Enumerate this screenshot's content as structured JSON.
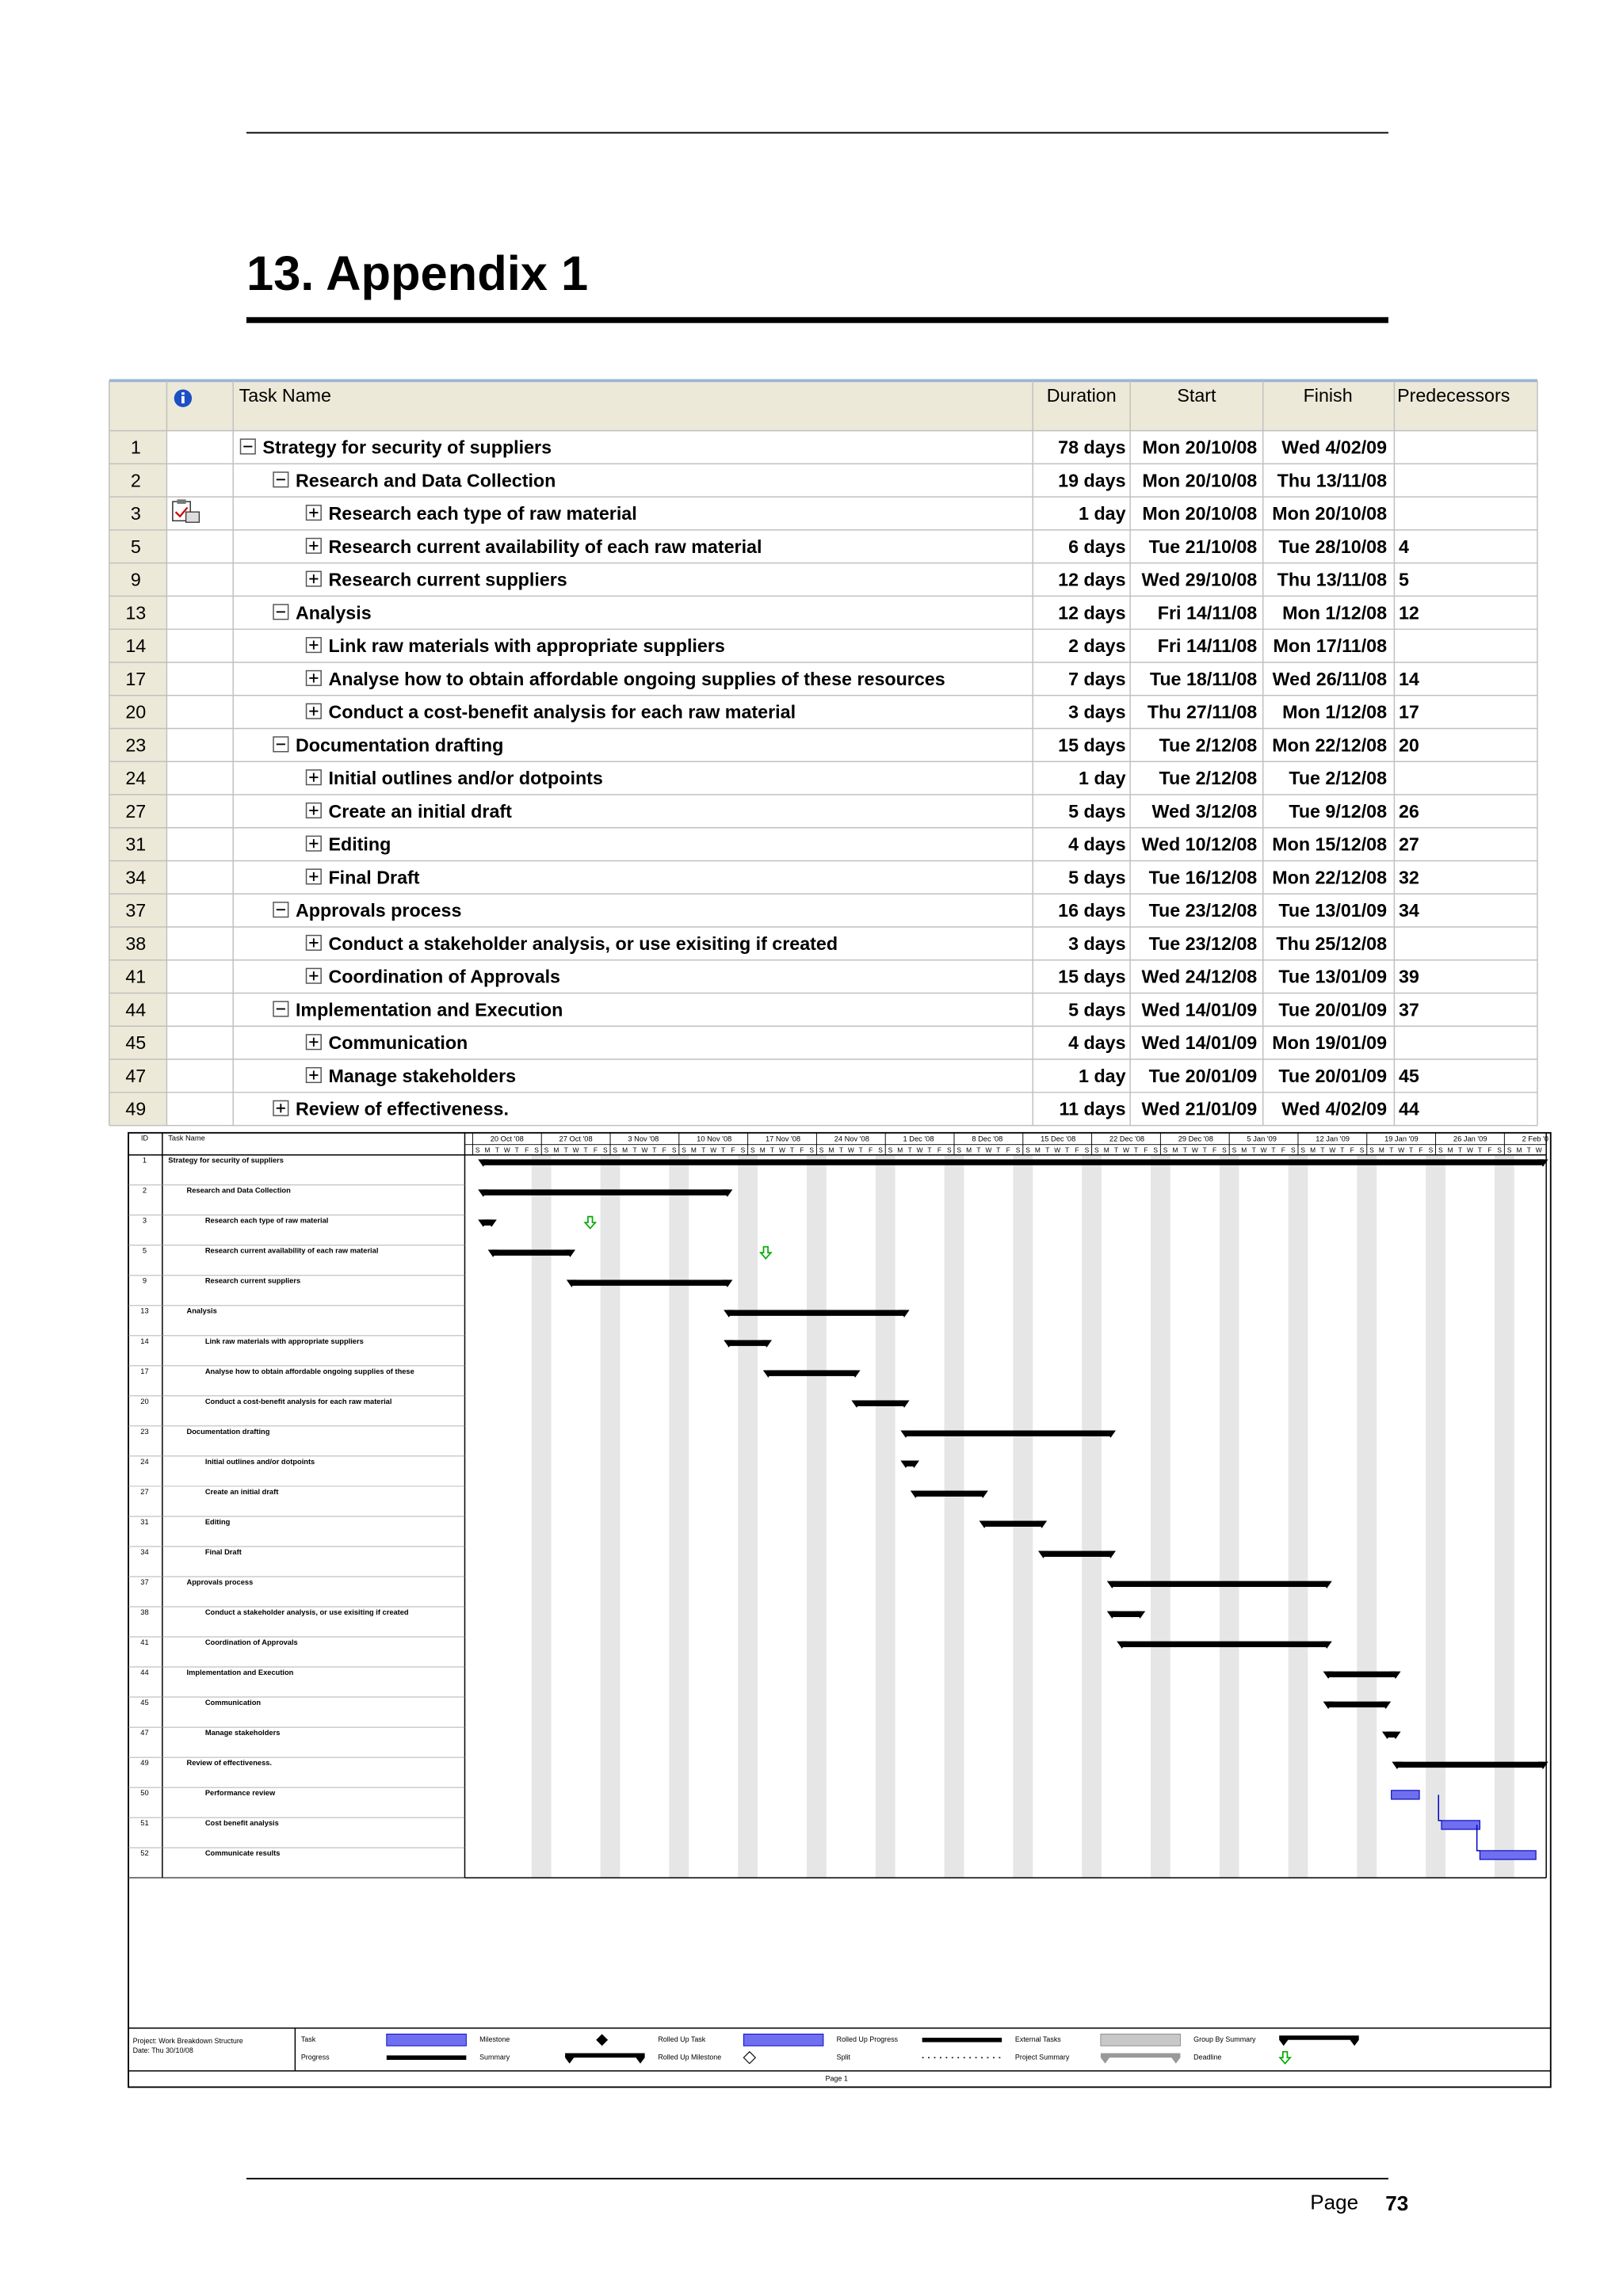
{
  "header": {
    "title": "13.  Appendix 1"
  },
  "table": {
    "columns": [
      "Task Name",
      "Duration",
      "Start",
      "Finish",
      "Predecessors"
    ],
    "rows": [
      {
        "id": 1,
        "name": "Strategy for security of suppliers",
        "duration": "78 days",
        "start": "Mon 20/10/08",
        "finish": "Wed 4/02/09"
      },
      {
        "id": 2,
        "name": "Research and Data Collection",
        "duration": "19 days",
        "start": "Mon 20/10/08",
        "finish": "Thu 13/11/08"
      },
      {
        "id": 3,
        "name": "Research each type of raw material",
        "duration": "1 day",
        "start": "Mon 20/10/08",
        "finish": "Mon 20/10/08"
      },
      {
        "id": 5,
        "name": "Research current availability of each raw material",
        "duration": "6 days",
        "start": "Tue 21/10/08",
        "finish": "Tue 28/10/08",
        "predecessors": 4
      },
      {
        "id": 9,
        "name": "Research current suppliers",
        "duration": "12 days",
        "start": "Wed 29/10/08",
        "finish": "Thu 13/11/08",
        "predecessors": 5
      },
      {
        "id": 13,
        "name": "Analysis",
        "duration": "12 days",
        "start": "Fri 14/11/08",
        "finish": "Mon 1/12/08",
        "predecessors": 12
      },
      {
        "id": 14,
        "name": "Link raw materials with appropriate suppliers",
        "duration": "2 days",
        "start": "Fri 14/11/08",
        "finish": "Mon 17/11/08"
      },
      {
        "id": 17,
        "name": "Analyse how to obtain affordable ongoing supplies of these resources",
        "duration": "7 days",
        "start": "Tue 18/11/08",
        "finish": "Wed 26/11/08",
        "predecessors": 14
      },
      {
        "id": 20,
        "name": "Conduct a cost-benefit analysis for each raw material",
        "duration": "3 days",
        "start": "Thu 27/11/08",
        "finish": "Mon 1/12/08",
        "predecessors": 17
      },
      {
        "id": 23,
        "name": "Documentation drafting",
        "duration": "15 days",
        "start": "Tue 2/12/08",
        "finish": "Mon 22/12/08",
        "predecessors": 20
      },
      {
        "id": 24,
        "name": "Initial outlines and/or dotpoints",
        "duration": "1 day",
        "start": "Tue 2/12/08",
        "finish": "Tue 2/12/08"
      },
      {
        "id": 27,
        "name": "Create an initial draft",
        "duration": "5 days",
        "start": "Wed 3/12/08",
        "finish": "Tue 9/12/08",
        "predecessors": 26
      },
      {
        "id": 31,
        "name": "Editing",
        "duration": "4 days",
        "start": "Wed 10/12/08",
        "finish": "Mon 15/12/08",
        "predecessors": 27
      },
      {
        "id": 34,
        "name": "Final Draft",
        "duration": "5 days",
        "start": "Tue 16/12/08",
        "finish": "Mon 22/12/08",
        "predecessors": 32
      },
      {
        "id": 37,
        "name": "Approvals process",
        "duration": "16 days",
        "start": "Tue 23/12/08",
        "finish": "Tue 13/01/09",
        "predecessors": 34
      },
      {
        "id": 38,
        "name": "Conduct a stakeholder analysis, or use exisiting if created",
        "duration": "3 days",
        "start": "Tue 23/12/08",
        "finish": "Thu 25/12/08"
      },
      {
        "id": 41,
        "name": "Coordination of Approvals",
        "duration": "15 days",
        "start": "Wed 24/12/08",
        "finish": "Tue 13/01/09",
        "predecessors": 39
      },
      {
        "id": 44,
        "name": "Implementation and Execution",
        "duration": "5 days",
        "start": "Wed 14/01/09",
        "finish": "Tue 20/01/09",
        "predecessors": 37
      },
      {
        "id": 45,
        "name": "Communication",
        "duration": "4 days",
        "start": "Wed 14/01/09",
        "finish": "Mon 19/01/09"
      },
      {
        "id": 47,
        "name": "Manage stakeholders",
        "duration": "1 day",
        "start": "Tue 20/01/09",
        "finish": "Tue 20/01/09",
        "predecessors": 45
      },
      {
        "id": 49,
        "name": "Review of effectiveness.",
        "duration": "11 days",
        "start": "Wed 21/01/09",
        "finish": "Wed 4/02/09",
        "predecessors": 44
      }
    ]
  },
  "gantt": {
    "columns": [
      "ID",
      "Task Name"
    ],
    "weeks": [
      "20 Oct '08",
      "27 Oct '08",
      "3 Nov '08",
      "10 Nov '08",
      "17 Nov '08",
      "24 Nov '08",
      "1 Dec '08",
      "8 Dec '08",
      "15 Dec '08",
      "22 Dec '08",
      "29 Dec '08",
      "5 Jan '09",
      "12 Jan '09",
      "19 Jan '09",
      "26 Jan '09",
      "2 Feb '0"
    ],
    "day_letters": [
      "S",
      "M",
      "T",
      "W",
      "T",
      "F",
      "S"
    ],
    "rows": [
      {
        "id": 1,
        "name": "Strategy for security of suppliers"
      },
      {
        "id": 2,
        "name": "Research and Data Collection"
      },
      {
        "id": 3,
        "name": "Research each type of raw material"
      },
      {
        "id": 5,
        "name": "Research current availability of each raw material"
      },
      {
        "id": 9,
        "name": "Research current suppliers"
      },
      {
        "id": 13,
        "name": "Analysis"
      },
      {
        "id": 14,
        "name": "Link raw materials with appropriate suppliers"
      },
      {
        "id": 17,
        "name": "Analyse how to obtain affordable ongoing supplies of these"
      },
      {
        "id": 20,
        "name": "Conduct a cost-benefit analysis for each raw material"
      },
      {
        "id": 23,
        "name": "Documentation drafting"
      },
      {
        "id": 24,
        "name": "Initial outlines and/or dotpoints"
      },
      {
        "id": 27,
        "name": "Create an initial draft"
      },
      {
        "id": 31,
        "name": "Editing"
      },
      {
        "id": 34,
        "name": "Final Draft"
      },
      {
        "id": 37,
        "name": "Approvals process"
      },
      {
        "id": 38,
        "name": "Conduct a stakeholder analysis, or use exisiting if created"
      },
      {
        "id": 41,
        "name": "Coordination of Approvals"
      },
      {
        "id": 44,
        "name": "Implementation and Execution"
      },
      {
        "id": 45,
        "name": "Communication"
      },
      {
        "id": 47,
        "name": "Manage stakeholders"
      },
      {
        "id": 49,
        "name": "Review of effectiveness."
      },
      {
        "id": 50,
        "name": "Performance review"
      },
      {
        "id": 51,
        "name": "Cost benefit analysis"
      },
      {
        "id": 52,
        "name": "Communicate results"
      }
    ],
    "project": [
      "Project: Work Breakdown Structure",
      "Date: Thu 30/10/08"
    ],
    "legend": [
      "Task",
      "Progress",
      "Milestone",
      "Summary",
      "Rolled Up Task",
      "Rolled Up Milestone",
      "Rolled Up Progress",
      "Split",
      "External Tasks",
      "Project Summary",
      "Group By Summary",
      "Deadline"
    ],
    "page": "Page 1"
  },
  "footer": {
    "label": "Page",
    "number": 73
  }
}
